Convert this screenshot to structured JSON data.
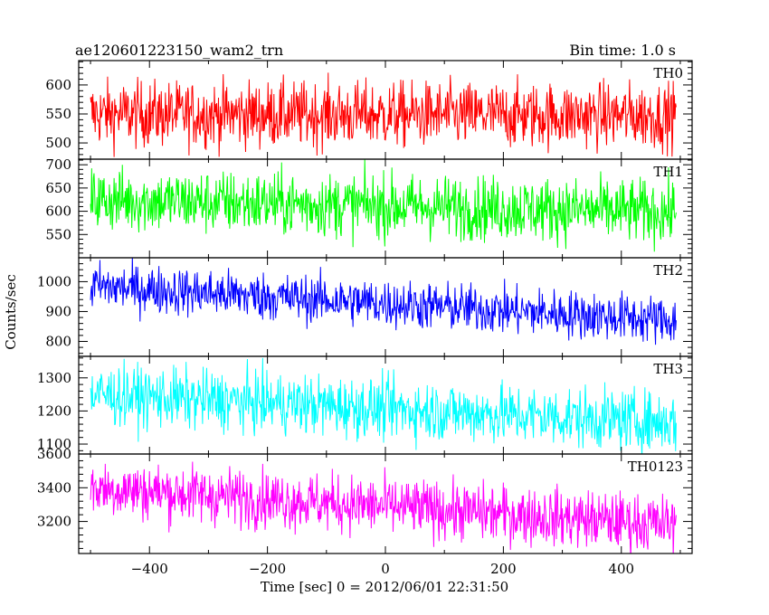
{
  "header": {
    "title": "ae120601223150_wam2_trn",
    "bin_time": "Bin time: 1.0 s"
  },
  "chart_data": {
    "type": "line",
    "title": "ae120601223150_wam2_trn",
    "xlabel": "Time [sec] 0 = 2012/06/01 22:31:50",
    "ylabel": "Counts/sec",
    "xlim": [
      -520,
      520
    ],
    "x_ticks": [
      -400,
      -200,
      0,
      200,
      400
    ],
    "x_tick_labels": [
      "−400",
      "−200",
      "0",
      "200",
      "400"
    ],
    "x_range": [
      -500,
      493
    ],
    "bin_time_s": 1.0,
    "panels": [
      {
        "name": "TH0",
        "color": "#ff0000",
        "ylim": [
          472,
          642
        ],
        "y_ticks": [
          500,
          550,
          600
        ],
        "mean_start": 550,
        "mean_end": 547,
        "noise_sd": 28
      },
      {
        "name": "TH1",
        "color": "#00ff00",
        "ylim": [
          500,
          712
        ],
        "y_ticks": [
          550,
          600,
          650,
          700
        ],
        "mean_start": 625,
        "mean_end": 598,
        "noise_sd": 34
      },
      {
        "name": "TH2",
        "color": "#0000ff",
        "ylim": [
          750,
          1080
        ],
        "y_ticks": [
          800,
          900,
          1000
        ],
        "mean_start": 985,
        "mean_end": 870,
        "noise_sd": 40
      },
      {
        "name": "TH3",
        "color": "#00ffff",
        "ylim": [
          1070,
          1365
        ],
        "y_ticks": [
          1100,
          1200,
          1300
        ],
        "mean_start": 1250,
        "mean_end": 1165,
        "noise_sd": 45
      },
      {
        "name": "TH0123",
        "color": "#ff00ff",
        "ylim": [
          3010,
          3600
        ],
        "y_ticks": [
          3200,
          3400,
          3600
        ],
        "mean_start": 3400,
        "mean_end": 3180,
        "noise_sd": 85
      }
    ]
  }
}
